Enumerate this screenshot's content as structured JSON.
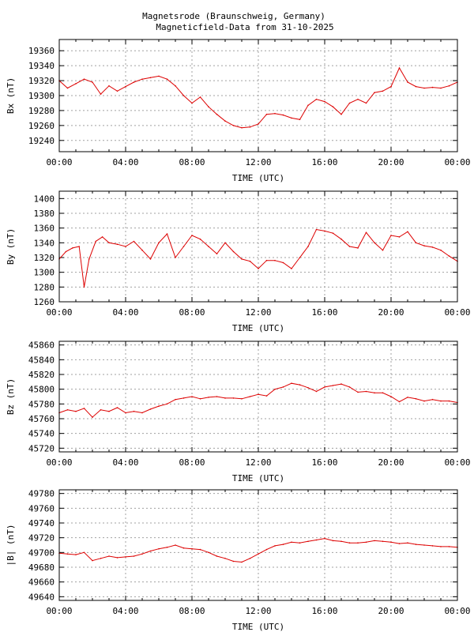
{
  "title_line1": "Magnetsrode (Braunschweig, Germany)",
  "title_line2": "Magneticfield-Data from 31-10-2025",
  "colors": {
    "series": "#dd0000",
    "grid": "#a0a0a0",
    "frame": "#000000"
  },
  "chart_data": [
    {
      "type": "line",
      "ylabel": "Bx (nT)",
      "xlabel": "TIME (UTC)",
      "xlim": [
        0,
        24
      ],
      "ylim": [
        19225,
        19375
      ],
      "x_ticks": [
        "00:00",
        "04:00",
        "08:00",
        "12:00",
        "16:00",
        "20:00",
        "00:00"
      ],
      "y_ticks": [
        19240,
        19260,
        19280,
        19300,
        19320,
        19340,
        19360
      ],
      "grid": true,
      "series": [
        {
          "x": [
            0,
            0.5,
            1,
            1.5,
            2,
            2.5,
            3,
            3.5,
            4,
            4.5,
            5,
            5.5,
            6,
            6.5,
            7,
            7.5,
            8,
            8.5,
            9,
            9.5,
            10,
            10.5,
            11,
            11.5,
            12,
            12.5,
            13,
            13.5,
            14,
            14.5,
            15,
            15.5,
            16,
            16.5,
            17,
            17.5,
            18,
            18.5,
            19,
            19.5,
            20,
            20.5,
            21,
            21.5,
            22,
            22.5,
            23,
            23.5,
            24
          ],
          "values": [
            19320,
            19310,
            19316,
            19322,
            19318,
            19302,
            19313,
            19306,
            19312,
            19318,
            19322,
            19324,
            19326,
            19322,
            19313,
            19300,
            19290,
            19298,
            19285,
            19275,
            19266,
            19260,
            19257,
            19258,
            19262,
            19275,
            19276,
            19274,
            19270,
            19268,
            19287,
            19295,
            19292,
            19285,
            19275,
            19290,
            19295,
            19290,
            19304,
            19306,
            19312,
            19337,
            19318,
            19312,
            19310,
            19311,
            19310,
            19313,
            19318
          ]
        }
      ]
    },
    {
      "type": "line",
      "ylabel": "By (nT)",
      "xlabel": "TIME (UTC)",
      "xlim": [
        0,
        24
      ],
      "ylim": [
        1260,
        1410
      ],
      "x_ticks": [
        "00:00",
        "04:00",
        "08:00",
        "12:00",
        "16:00",
        "20:00",
        "00:00"
      ],
      "y_ticks": [
        1260,
        1280,
        1300,
        1320,
        1340,
        1360,
        1380,
        1400
      ],
      "grid": true,
      "series": [
        {
          "x": [
            0,
            0.4,
            0.8,
            1.2,
            1.5,
            1.8,
            2.2,
            2.6,
            3,
            3.5,
            4,
            4.5,
            5,
            5.5,
            6,
            6.5,
            7,
            7.5,
            8,
            8.5,
            9,
            9.5,
            10,
            10.5,
            11,
            11.5,
            12,
            12.5,
            13,
            13.5,
            14,
            14.5,
            15,
            15.5,
            16,
            16.5,
            17,
            17.5,
            18,
            18.5,
            19,
            19.5,
            20,
            20.5,
            21,
            21.5,
            22,
            22.5,
            23,
            23.5,
            24
          ],
          "values": [
            1318,
            1328,
            1333,
            1335,
            1280,
            1318,
            1342,
            1348,
            1340,
            1338,
            1335,
            1342,
            1330,
            1318,
            1340,
            1352,
            1320,
            1335,
            1350,
            1345,
            1335,
            1325,
            1340,
            1328,
            1318,
            1315,
            1305,
            1316,
            1316,
            1313,
            1305,
            1320,
            1335,
            1358,
            1356,
            1353,
            1345,
            1335,
            1333,
            1354,
            1340,
            1330,
            1350,
            1348,
            1355,
            1340,
            1336,
            1334,
            1330,
            1322,
            1315
          ]
        }
      ]
    },
    {
      "type": "line",
      "ylabel": "Bz (nT)",
      "xlabel": "TIME (UTC)",
      "xlim": [
        0,
        24
      ],
      "ylim": [
        45715,
        45865
      ],
      "x_ticks": [
        "00:00",
        "04:00",
        "08:00",
        "12:00",
        "16:00",
        "20:00",
        "00:00"
      ],
      "y_ticks": [
        45720,
        45740,
        45760,
        45780,
        45800,
        45820,
        45840,
        45860
      ],
      "grid": true,
      "series": [
        {
          "x": [
            0,
            0.5,
            1,
            1.5,
            2,
            2.5,
            3,
            3.5,
            4,
            4.5,
            5,
            5.5,
            6,
            6.5,
            7,
            7.5,
            8,
            8.5,
            9,
            9.5,
            10,
            10.5,
            11,
            11.5,
            12,
            12.5,
            13,
            13.5,
            14,
            14.5,
            15,
            15.5,
            16,
            16.5,
            17,
            17.5,
            18,
            18.5,
            19,
            19.5,
            20,
            20.5,
            21,
            21.5,
            22,
            22.5,
            23,
            23.5,
            24
          ],
          "values": [
            45768,
            45772,
            45770,
            45774,
            45762,
            45772,
            45770,
            45775,
            45768,
            45770,
            45768,
            45773,
            45777,
            45780,
            45786,
            45788,
            45790,
            45787,
            45789,
            45790,
            45788,
            45788,
            45787,
            45790,
            45793,
            45791,
            45800,
            45803,
            45808,
            45806,
            45802,
            45797,
            45803,
            45805,
            45807,
            45803,
            45796,
            45797,
            45795,
            45795,
            45790,
            45783,
            45789,
            45787,
            45784,
            45786,
            45784,
            45784,
            45782
          ]
        }
      ]
    },
    {
      "type": "line",
      "ylabel": "|B| (nT)",
      "xlabel": "TIME (UTC)",
      "xlim": [
        0,
        24
      ],
      "ylim": [
        49635,
        49785
      ],
      "x_ticks": [
        "00:00",
        "04:00",
        "08:00",
        "12:00",
        "16:00",
        "20:00",
        "00:00"
      ],
      "y_ticks": [
        49640,
        49660,
        49680,
        49700,
        49720,
        49740,
        49760,
        49780
      ],
      "grid": true,
      "series": [
        {
          "x": [
            0,
            0.5,
            1,
            1.5,
            2,
            2.5,
            3,
            3.5,
            4,
            4.5,
            5,
            5.5,
            6,
            6.5,
            7,
            7.5,
            8,
            8.5,
            9,
            9.5,
            10,
            10.5,
            11,
            11.5,
            12,
            12.5,
            13,
            13.5,
            14,
            14.5,
            15,
            15.5,
            16,
            16.5,
            17,
            17.5,
            18,
            18.5,
            19,
            19.5,
            20,
            20.5,
            21,
            21.5,
            22,
            22.5,
            23,
            23.5,
            24
          ],
          "values": [
            49699,
            49698,
            49697,
            49700,
            49689,
            49692,
            49695,
            49693,
            49694,
            49695,
            49698,
            49702,
            49705,
            49707,
            49710,
            49706,
            49705,
            49704,
            49700,
            49695,
            49692,
            49688,
            49687,
            49692,
            49698,
            49704,
            49709,
            49711,
            49714,
            49713,
            49715,
            49717,
            49719,
            49716,
            49715,
            49713,
            49713,
            49714,
            49716,
            49715,
            49714,
            49712,
            49713,
            49711,
            49710,
            49709,
            49708,
            49708,
            49707
          ]
        }
      ]
    }
  ]
}
